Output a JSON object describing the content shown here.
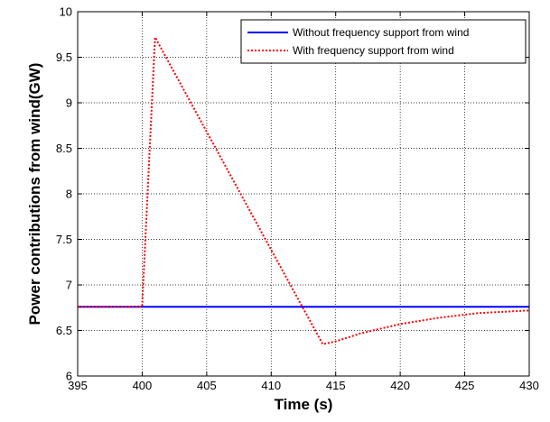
{
  "chart_data": {
    "type": "line",
    "title": "",
    "xlabel": "Time (s)",
    "ylabel": "Power contributions from wind(GW)",
    "xlim": [
      395,
      430
    ],
    "ylim": [
      6,
      10
    ],
    "xticks": [
      395,
      400,
      405,
      410,
      415,
      420,
      425,
      430
    ],
    "yticks": [
      6,
      6.5,
      7,
      7.5,
      8,
      8.5,
      9,
      9.5,
      10
    ],
    "xtick_labels": [
      "395",
      "400",
      "405",
      "410",
      "415",
      "420",
      "425",
      "430"
    ],
    "ytick_labels": [
      "6",
      "6.5",
      "7",
      "7.5",
      "8",
      "8.5",
      "9",
      "9.5",
      "10"
    ],
    "grid": true,
    "legend_position": "top-right",
    "series": [
      {
        "name": "Without frequency support from wind",
        "color": "#0000ff",
        "style": "solid",
        "x": [
          395,
          430
        ],
        "y": [
          6.76,
          6.76
        ]
      },
      {
        "name": "With frequency support from wind",
        "color": "#ff0000",
        "style": "dotted",
        "x": [
          395,
          400,
          401,
          414,
          415,
          417,
          420,
          423,
          426,
          430
        ],
        "y": [
          6.76,
          6.76,
          9.72,
          6.35,
          6.38,
          6.47,
          6.57,
          6.64,
          6.69,
          6.72
        ]
      }
    ]
  }
}
